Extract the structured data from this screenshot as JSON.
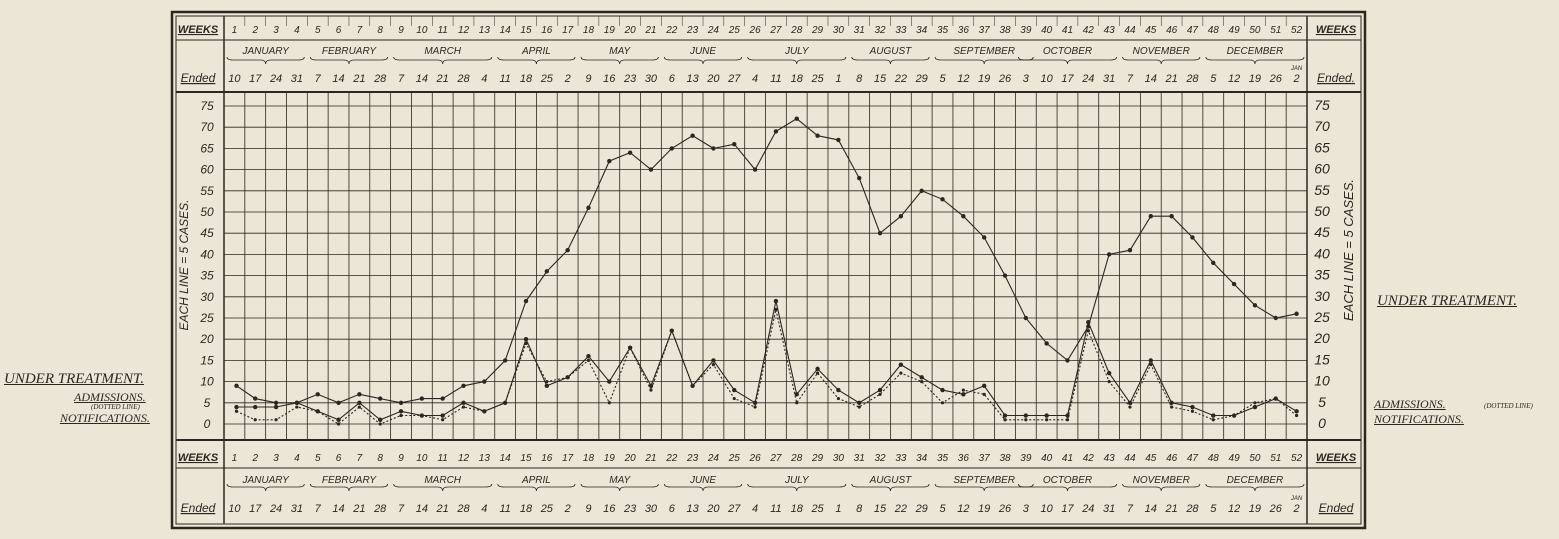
{
  "side_labels": {
    "left": {
      "under_treatment": "UNDER TREATMENT.",
      "admissions": "ADMISSIONS.",
      "admissions_note": "(DOTTED LINE)",
      "notifications": "NOTIFICATIONS."
    },
    "right": {
      "under_treatment": "UNDER TREATMENT.",
      "admissions": "ADMISSIONS.",
      "admissions_note": "(DOTTED LINE)",
      "notifications": "NOTIFICATIONS."
    }
  },
  "header": {
    "weeks_label": "WEEKS",
    "ended_label": "Ended",
    "ended_label_right": "Ended.",
    "week_numbers": [
      "1",
      "2",
      "3",
      "4",
      "5",
      "6",
      "7",
      "8",
      "9",
      "10",
      "11",
      "12",
      "13",
      "14",
      "15",
      "16",
      "17",
      "18",
      "19",
      "20",
      "21",
      "22",
      "23",
      "24",
      "25",
      "26",
      "27",
      "28",
      "29",
      "30",
      "31",
      "32",
      "33",
      "34",
      "35",
      "36",
      "37",
      "38",
      "39",
      "40",
      "41",
      "42",
      "43",
      "44",
      "45",
      "46",
      "47",
      "48",
      "49",
      "50",
      "51",
      "52"
    ],
    "months": [
      {
        "name": "JANUARY",
        "start": 1,
        "end": 4
      },
      {
        "name": "FEBRUARY",
        "start": 5,
        "end": 8
      },
      {
        "name": "MARCH",
        "start": 9,
        "end": 13
      },
      {
        "name": "APRIL",
        "start": 14,
        "end": 17
      },
      {
        "name": "MAY",
        "start": 18,
        "end": 21
      },
      {
        "name": "JUNE",
        "start": 22,
        "end": 25
      },
      {
        "name": "JULY",
        "start": 26,
        "end": 30
      },
      {
        "name": "AUGUST",
        "start": 31,
        "end": 34
      },
      {
        "name": "SEPTEMBER",
        "start": 35,
        "end": 39
      },
      {
        "name": "OCTOBER",
        "start": 39,
        "end": 43
      },
      {
        "name": "NOVEMBER",
        "start": 44,
        "end": 47
      },
      {
        "name": "DECEMBER",
        "start": 48,
        "end": 52
      }
    ],
    "week_ended_dates": [
      "10",
      "17",
      "24",
      "31",
      "7",
      "14",
      "21",
      "28",
      "7",
      "14",
      "21",
      "28",
      "4",
      "11",
      "18",
      "25",
      "2",
      "9",
      "16",
      "23",
      "30",
      "6",
      "13",
      "20",
      "27",
      "4",
      "11",
      "18",
      "25",
      "1",
      "8",
      "15",
      "22",
      "29",
      "5",
      "12",
      "19",
      "26",
      "3",
      "10",
      "17",
      "24",
      "31",
      "7",
      "14",
      "21",
      "28",
      "5",
      "12",
      "19",
      "26",
      "2"
    ],
    "jan_note": "JAN"
  },
  "chart_data": {
    "type": "line",
    "title": "",
    "ylabel": "EACH LINE = 5 CASES.",
    "y_ticks": [
      0,
      5,
      10,
      15,
      20,
      25,
      30,
      35,
      40,
      45,
      50,
      55,
      60,
      65,
      70,
      75
    ],
    "ylim": [
      0,
      77
    ],
    "x": [
      1,
      2,
      3,
      4,
      5,
      6,
      7,
      8,
      9,
      10,
      11,
      12,
      13,
      14,
      15,
      16,
      17,
      18,
      19,
      20,
      21,
      22,
      23,
      24,
      25,
      26,
      27,
      28,
      29,
      30,
      31,
      32,
      33,
      34,
      35,
      36,
      37,
      38,
      39,
      40,
      41,
      42,
      43,
      44,
      45,
      46,
      47,
      48,
      49,
      50,
      51,
      52
    ],
    "grid": true,
    "series": [
      {
        "name": "UNDER TREATMENT.",
        "style": "solid",
        "values": [
          9,
          6,
          5,
          5,
          7,
          5,
          7,
          6,
          5,
          6,
          6,
          9,
          10,
          15,
          29,
          36,
          41,
          51,
          62,
          64,
          60,
          65,
          68,
          65,
          66,
          60,
          69,
          72,
          68,
          67,
          58,
          45,
          49,
          55,
          53,
          49,
          44,
          35,
          25,
          19,
          15,
          23,
          40,
          41,
          49,
          49,
          44,
          38,
          33,
          28,
          25,
          26
        ]
      },
      {
        "name": "ADMISSIONS.",
        "style": "dotted",
        "values": [
          3,
          1,
          1,
          4,
          3,
          0,
          4,
          0,
          2,
          2,
          1,
          4,
          3,
          5,
          19,
          10,
          11,
          15,
          5,
          18,
          8,
          22,
          9,
          14,
          6,
          4,
          27,
          5,
          12,
          6,
          4,
          7,
          12,
          10,
          5,
          8,
          7,
          1,
          1,
          1,
          1,
          22,
          10,
          4,
          14,
          4,
          3,
          1,
          2,
          5,
          6,
          2
        ]
      },
      {
        "name": "NOTIFICATIONS.",
        "style": "solid",
        "values": [
          4,
          4,
          4,
          5,
          3,
          1,
          5,
          1,
          3,
          2,
          2,
          5,
          3,
          5,
          20,
          9,
          11,
          16,
          10,
          18,
          9,
          22,
          9,
          15,
          8,
          5,
          29,
          7,
          13,
          8,
          5,
          8,
          14,
          11,
          8,
          7,
          9,
          2,
          2,
          2,
          2,
          24,
          12,
          5,
          15,
          5,
          4,
          2,
          2,
          4,
          6,
          3
        ]
      }
    ]
  }
}
